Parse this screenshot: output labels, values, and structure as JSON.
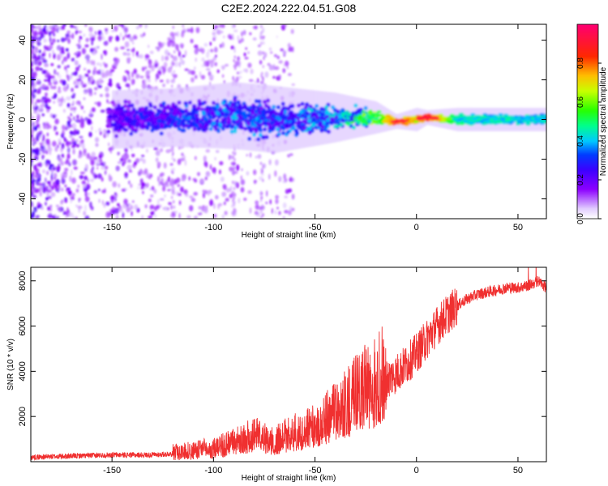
{
  "title": "C2E2.2024.222.04.51.G08",
  "chart_data": [
    {
      "type": "heatmap",
      "xlabel": "Height of straight line (km)",
      "ylabel": "Frequency (Hz)",
      "xlim": [
        -190,
        64
      ],
      "ylim": [
        -50,
        48
      ],
      "xticks": [
        -150,
        -100,
        -50,
        0,
        50
      ],
      "yticks": [
        -40,
        -20,
        0,
        20,
        40
      ],
      "colorbar": {
        "label": "Normalized spectral amplitude",
        "range": [
          0,
          1
        ],
        "ticks": [
          0.0,
          0.2,
          0.4,
          0.6,
          0.8
        ]
      },
      "ridge": [
        {
          "x": -150,
          "frequency": 0,
          "spread": 6,
          "amplitude": 0.2
        },
        {
          "x": -120,
          "frequency": 1,
          "spread": 6,
          "amplitude": 0.28
        },
        {
          "x": -90,
          "frequency": 2,
          "spread": 7,
          "amplitude": 0.32
        },
        {
          "x": -70,
          "frequency": 0,
          "spread": 7,
          "amplitude": 0.3
        },
        {
          "x": -40,
          "frequency": 1,
          "spread": 5,
          "amplitude": 0.35
        },
        {
          "x": -20,
          "frequency": 1,
          "spread": 3,
          "amplitude": 0.55
        },
        {
          "x": -10,
          "frequency": -1,
          "spread": 1,
          "amplitude": 0.85
        },
        {
          "x": 0,
          "frequency": 0,
          "spread": 2,
          "amplitude": 0.7
        },
        {
          "x": 5,
          "frequency": 1,
          "spread": 1,
          "amplitude": 0.9
        },
        {
          "x": 20,
          "frequency": 0,
          "spread": 2,
          "amplitude": 0.45
        },
        {
          "x": 64,
          "frequency": 0,
          "spread": 2,
          "amplitude": 0.42
        }
      ]
    },
    {
      "type": "line",
      "xlabel": "Height of straight line (km)",
      "ylabel": "SNR (10 * v/v)",
      "xlim": [
        -190,
        64
      ],
      "ylim": [
        0,
        8600
      ],
      "xticks": [
        -150,
        -100,
        -50,
        0,
        50
      ],
      "yticks": [
        2000,
        4000,
        6000,
        8000
      ],
      "color": "#f03030",
      "series": [
        {
          "x": [
            -190,
            -170,
            -150,
            -130,
            -120,
            -110,
            -100,
            -90,
            -80,
            -70,
            -60,
            -50,
            -45,
            -40,
            -35,
            -30,
            -25,
            -20,
            -15,
            -10,
            -5,
            0,
            5,
            10,
            15,
            20,
            25,
            30,
            35,
            40,
            45,
            50,
            55,
            58,
            60,
            64
          ],
          "values": [
            200,
            250,
            300,
            300,
            350,
            400,
            500,
            700,
            1000,
            800,
            1100,
            1300,
            1600,
            1900,
            2200,
            2500,
            2800,
            3000,
            3600,
            3900,
            4300,
            4800,
            5400,
            6000,
            6500,
            6900,
            7200,
            7400,
            7500,
            7600,
            7700,
            7700,
            7800,
            7900,
            8000,
            7700
          ]
        }
      ]
    }
  ]
}
